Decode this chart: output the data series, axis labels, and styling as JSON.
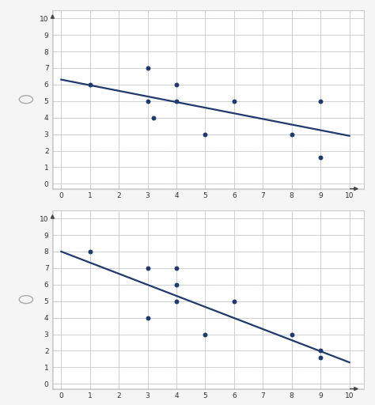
{
  "plot1": {
    "scatter_x": [
      1,
      3,
      3,
      3.2,
      4,
      4,
      5,
      6,
      8,
      9,
      9
    ],
    "scatter_y": [
      6,
      7,
      5,
      4,
      5,
      6,
      3,
      5,
      3,
      5,
      1.6
    ],
    "line_x": [
      0,
      10
    ],
    "line_y": [
      6.3,
      2.9
    ],
    "xlim": [
      -0.3,
      10.5
    ],
    "ylim": [
      -0.3,
      10.5
    ],
    "xticks": [
      0,
      1,
      2,
      3,
      4,
      5,
      6,
      7,
      8,
      9,
      10
    ],
    "yticks": [
      0,
      1,
      2,
      3,
      4,
      5,
      6,
      7,
      8,
      9,
      10
    ]
  },
  "plot2": {
    "scatter_x": [
      1,
      3,
      3,
      4,
      4,
      4,
      5,
      6,
      8,
      9,
      9
    ],
    "scatter_y": [
      8,
      7,
      4,
      7,
      5,
      6,
      3,
      5,
      3,
      2,
      1.6
    ],
    "line_x": [
      0,
      10
    ],
    "line_y": [
      8.0,
      1.3
    ],
    "xlim": [
      -0.3,
      10.5
    ],
    "ylim": [
      -0.3,
      10.5
    ],
    "xticks": [
      0,
      1,
      2,
      3,
      4,
      5,
      6,
      7,
      8,
      9,
      10
    ],
    "yticks": [
      0,
      1,
      2,
      3,
      4,
      5,
      6,
      7,
      8,
      9,
      10
    ]
  },
  "dot_color": "#1e3a6e",
  "line_color": "#1e3a6e",
  "background_color": "#f5f5f5",
  "plot_bg_color": "#ffffff",
  "grid_color": "#c8c8d0",
  "axis_color": "#444444",
  "tick_color": "#333333",
  "radio_color": "#aaaaaa",
  "border_color": "#cccccc"
}
